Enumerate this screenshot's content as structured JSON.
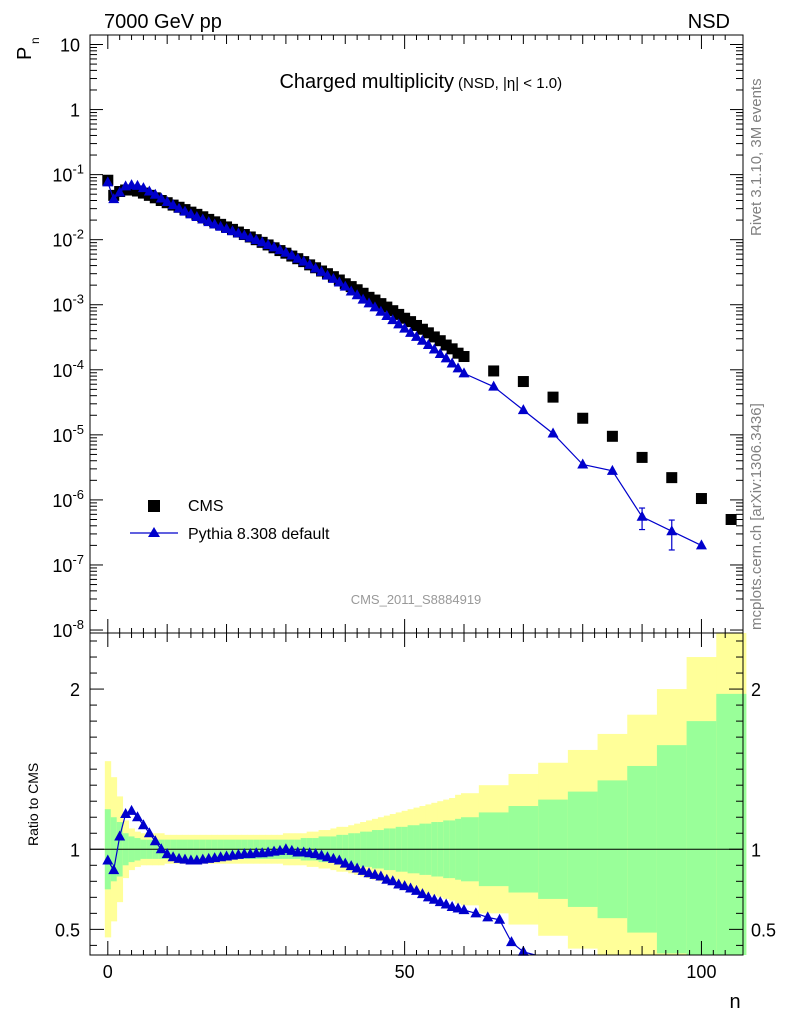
{
  "header": {
    "left": "7000 GeV pp",
    "right": "NSD"
  },
  "side_text": {
    "top": "Rivet 3.1.10,  3M events",
    "bottom": "mcplots.cern.ch [arXiv:1306.3436]"
  },
  "chart_data": [
    {
      "type": "scatter",
      "title": "Charged multiplicity",
      "subtitle": "(NSD, |η| < 1.0)",
      "watermark": "CMS_2011_S8884919",
      "ylabel": "P",
      "ylabel_sub": "n",
      "xlabel": "",
      "yscale": "log",
      "xlim": [
        -3,
        107
      ],
      "ylim": [
        9e-09,
        14
      ],
      "xticks": [
        0,
        50,
        100
      ],
      "ytick_labels": [
        "10",
        "1",
        "10^-1",
        "10^-2",
        "10^-3",
        "10^-4",
        "10^-5",
        "10^-6",
        "10^-7",
        "10^-8"
      ],
      "legend_position": "bottom-left",
      "series": [
        {
          "name": "CMS",
          "marker": "square",
          "color": "#000000",
          "x": [
            0,
            1,
            2,
            3,
            4,
            5,
            6,
            7,
            8,
            9,
            10,
            11,
            12,
            13,
            14,
            15,
            16,
            17,
            18,
            19,
            20,
            21,
            22,
            23,
            24,
            25,
            26,
            27,
            28,
            29,
            30,
            31,
            32,
            33,
            34,
            35,
            36,
            37,
            38,
            39,
            40,
            41,
            42,
            43,
            44,
            45,
            46,
            47,
            48,
            49,
            50,
            51,
            52,
            53,
            54,
            55,
            56,
            57,
            58,
            59,
            60,
            62,
            64,
            66,
            68,
            70,
            72,
            74,
            76,
            78,
            80,
            82,
            84,
            86,
            88,
            90,
            92,
            94,
            96,
            98,
            100,
            102,
            104
          ],
          "y": [
            0.08,
            0.05,
            0.055,
            0.058,
            0.058,
            0.056,
            0.052,
            0.048,
            0.044,
            0.04,
            0.037,
            0.034,
            0.0315,
            0.029,
            0.0265,
            0.0245,
            0.0225,
            0.0205,
            0.0188,
            0.0172,
            0.0157,
            0.0144,
            0.0131,
            0.012,
            0.011,
            0.01,
            0.0091,
            0.0083,
            0.0075,
            0.0068,
            0.0062,
            0.0056,
            0.0051,
            0.0046,
            0.0041,
            0.0037,
            0.0033,
            0.003,
            0.0027,
            0.0024,
            0.0021,
            0.0019,
            0.0017,
            0.0015,
            0.0013,
            0.00118,
            0.00104,
            0.00092,
            0.00081,
            0.00071,
            0.00062,
            0.00055,
            0.00048,
            0.00042,
            0.00037,
            0.00032,
            0.00028,
            0.00024,
            0.00021,
            0.00018,
            0.00016,
            0.0001,
            7e-05,
            5e-05,
            3.7e-05,
            2.4e-05,
            1.75e-05,
            1.25e-05,
            8.8e-06,
            6e-06,
            4.3e-06,
            3e-06,
            2.2e-06,
            1.5e-06,
            1.05e-06,
            7.2e-07,
            5e-07,
            3.5e-07,
            2.4e-07,
            1.7e-07,
            1.2e-07,
            9e-08,
            6.5e-08
          ],
          "bins_x": [
            0,
            1,
            2,
            3,
            4,
            5,
            6,
            7,
            8,
            9,
            10,
            11,
            12,
            13,
            14,
            15,
            16,
            17,
            18,
            19,
            20,
            21,
            22,
            23,
            24,
            25,
            26,
            27,
            28,
            29,
            30,
            31,
            32,
            33,
            34,
            35,
            36,
            37,
            38,
            39,
            40,
            41,
            42,
            43,
            44,
            45,
            46,
            47,
            48,
            49,
            50,
            51,
            52,
            53,
            54,
            55,
            56,
            57,
            58,
            59,
            60,
            65,
            70,
            75,
            80,
            85,
            90,
            95,
            100,
            105
          ],
          "bins_y": [
            0.082,
            0.048,
            0.055,
            0.058,
            0.058,
            0.056,
            0.052,
            0.048,
            0.044,
            0.04,
            0.037,
            0.034,
            0.0315,
            0.029,
            0.0265,
            0.0245,
            0.0225,
            0.0205,
            0.0188,
            0.0172,
            0.0157,
            0.0144,
            0.0131,
            0.012,
            0.011,
            0.01,
            0.0091,
            0.0083,
            0.0075,
            0.0068,
            0.0062,
            0.0056,
            0.0051,
            0.0046,
            0.0041,
            0.0037,
            0.0033,
            0.003,
            0.0027,
            0.0024,
            0.0021,
            0.0019,
            0.0017,
            0.0015,
            0.0013,
            0.00118,
            0.00104,
            0.00092,
            0.00081,
            0.00071,
            0.00062,
            0.00055,
            0.00048,
            0.00042,
            0.00037,
            0.00032,
            0.00028,
            0.00024,
            0.00021,
            0.00018,
            0.00016,
            9.6e-05,
            6.6e-05,
            3.8e-05,
            1.8e-05,
            9.5e-06,
            4.5e-06,
            2.2e-06,
            1.05e-06,
            5e-07
          ]
        },
        {
          "name": "Pythia 8.308 default",
          "marker": "triangle",
          "color": "#0000cc",
          "x": [
            0,
            1,
            2,
            3,
            4,
            5,
            6,
            7,
            8,
            9,
            10,
            11,
            12,
            13,
            14,
            15,
            16,
            17,
            18,
            19,
            20,
            21,
            22,
            23,
            24,
            25,
            26,
            27,
            28,
            29,
            30,
            31,
            32,
            33,
            34,
            35,
            36,
            37,
            38,
            39,
            40,
            41,
            42,
            43,
            44,
            45,
            46,
            47,
            48,
            49,
            50,
            51,
            52,
            53,
            54,
            55,
            56,
            57,
            58,
            59,
            60,
            65,
            70,
            75,
            80,
            85,
            90,
            95,
            100
          ],
          "y": [
            0.076,
            0.042,
            0.053,
            0.066,
            0.069,
            0.067,
            0.062,
            0.055,
            0.049,
            0.043,
            0.038,
            0.034,
            0.03,
            0.027,
            0.0245,
            0.0223,
            0.0204,
            0.0186,
            0.0171,
            0.0158,
            0.0146,
            0.0135,
            0.0125,
            0.0116,
            0.0107,
            0.0099,
            0.0091,
            0.0083,
            0.0076,
            0.0069,
            0.0063,
            0.0057,
            0.0051,
            0.0046,
            0.0041,
            0.0036,
            0.0032,
            0.0028,
            0.0025,
            0.0022,
            0.0019,
            0.0016,
            0.0014,
            0.0012,
            0.00105,
            0.00091,
            0.00078,
            0.00067,
            0.00058,
            0.0005,
            0.00043,
            0.00037,
            0.00032,
            0.00028,
            0.00024,
            0.000205,
            0.000175,
            0.00015,
            0.000125,
            0.000105,
            8.8e-05,
            5.5e-05,
            2.4e-05,
            1.05e-05,
            3.5e-06,
            2.8e-06,
            5.5e-07,
            3.3e-07,
            2e-07
          ],
          "yerr": [
            0,
            0,
            0,
            0,
            0,
            0,
            0,
            0,
            0,
            0,
            0,
            0,
            0,
            0,
            0,
            0,
            0,
            0,
            0,
            0,
            0,
            0,
            0,
            0,
            0,
            0,
            0,
            0,
            0,
            0,
            0,
            0,
            0,
            0,
            0,
            0,
            0,
            0,
            0,
            0,
            0,
            0,
            0,
            0,
            0,
            0,
            0,
            0,
            0,
            0,
            0,
            0,
            0,
            0,
            0,
            0,
            0,
            0,
            0,
            0,
            0,
            0,
            0,
            0,
            0,
            0,
            2e-07,
            1.6e-07,
            0
          ]
        }
      ]
    },
    {
      "type": "line",
      "ylabel": "Ratio to CMS",
      "xlabel": "n",
      "xlim": [
        -3,
        107
      ],
      "ylim": [
        0.34,
        2.35
      ],
      "xticks": [
        0,
        50,
        100
      ],
      "yticks": [
        0.5,
        1,
        2
      ],
      "reference_line": 1,
      "band_colors": {
        "inner": "#99ff99",
        "outer": "#ffff99"
      },
      "bands": {
        "x_edges": [
          -0.5,
          0.5,
          1.5,
          2.5,
          3.5,
          4.5,
          5.5,
          6.5,
          7.5,
          8.5,
          9.5,
          10.5,
          11.5,
          12.5,
          13.5,
          14.5,
          15.5,
          16.5,
          17.5,
          18.5,
          19.5,
          20.5,
          21.5,
          22.5,
          23.5,
          24.5,
          25.5,
          26.5,
          27.5,
          28.5,
          29.5,
          30.5,
          31.5,
          32.5,
          33.5,
          34.5,
          35.5,
          36.5,
          37.5,
          38.5,
          39.5,
          40.5,
          41.5,
          42.5,
          43.5,
          44.5,
          45.5,
          46.5,
          47.5,
          48.5,
          49.5,
          50.5,
          51.5,
          52.5,
          53.5,
          54.5,
          55.5,
          56.5,
          57.5,
          58.5,
          59.5,
          62.5,
          67.5,
          72.5,
          77.5,
          82.5,
          87.5,
          92.5,
          97.5,
          102.5,
          107.5
        ],
        "inner_half_width": [
          0.25,
          0.2,
          0.17,
          0.1,
          0.08,
          0.07,
          0.06,
          0.06,
          0.06,
          0.06,
          0.06,
          0.06,
          0.06,
          0.06,
          0.06,
          0.06,
          0.06,
          0.06,
          0.06,
          0.06,
          0.06,
          0.06,
          0.06,
          0.06,
          0.06,
          0.06,
          0.06,
          0.06,
          0.06,
          0.06,
          0.06,
          0.06,
          0.06,
          0.07,
          0.07,
          0.07,
          0.08,
          0.08,
          0.08,
          0.09,
          0.09,
          0.1,
          0.1,
          0.11,
          0.11,
          0.12,
          0.12,
          0.13,
          0.13,
          0.14,
          0.14,
          0.15,
          0.15,
          0.16,
          0.16,
          0.17,
          0.17,
          0.18,
          0.18,
          0.19,
          0.2,
          0.23,
          0.27,
          0.31,
          0.36,
          0.43,
          0.52,
          0.65,
          0.8,
          0.97
        ],
        "outer_half_width": [
          0.55,
          0.45,
          0.33,
          0.18,
          0.13,
          0.11,
          0.1,
          0.1,
          0.1,
          0.1,
          0.09,
          0.09,
          0.09,
          0.09,
          0.09,
          0.09,
          0.09,
          0.09,
          0.09,
          0.09,
          0.09,
          0.09,
          0.09,
          0.09,
          0.09,
          0.09,
          0.09,
          0.09,
          0.09,
          0.09,
          0.1,
          0.1,
          0.1,
          0.1,
          0.11,
          0.11,
          0.12,
          0.12,
          0.13,
          0.14,
          0.14,
          0.15,
          0.16,
          0.17,
          0.18,
          0.19,
          0.2,
          0.21,
          0.22,
          0.23,
          0.24,
          0.25,
          0.26,
          0.27,
          0.28,
          0.29,
          0.3,
          0.31,
          0.32,
          0.34,
          0.35,
          0.4,
          0.47,
          0.54,
          0.62,
          0.72,
          0.84,
          1.0,
          1.2,
          1.5
        ]
      },
      "series": [
        {
          "name": "Pythia 8.308 default",
          "color": "#0000cc",
          "x": [
            0,
            1,
            2,
            3,
            4,
            5,
            6,
            7,
            8,
            9,
            10,
            11,
            12,
            13,
            14,
            15,
            16,
            17,
            18,
            19,
            20,
            21,
            22,
            23,
            24,
            25,
            26,
            27,
            28,
            29,
            30,
            31,
            32,
            33,
            34,
            35,
            36,
            37,
            38,
            39,
            40,
            41,
            42,
            43,
            44,
            45,
            46,
            47,
            48,
            49,
            50,
            51,
            52,
            53,
            54,
            55,
            56,
            57,
            58,
            59,
            60,
            62,
            64,
            66,
            68,
            70
          ],
          "y": [
            0.93,
            0.87,
            1.08,
            1.22,
            1.24,
            1.2,
            1.15,
            1.1,
            1.05,
            1.0,
            0.97,
            0.95,
            0.94,
            0.935,
            0.93,
            0.93,
            0.935,
            0.94,
            0.945,
            0.95,
            0.955,
            0.96,
            0.965,
            0.97,
            0.97,
            0.975,
            0.975,
            0.98,
            0.985,
            0.99,
            1.0,
            0.99,
            0.98,
            0.98,
            0.975,
            0.97,
            0.96,
            0.95,
            0.94,
            0.93,
            0.91,
            0.895,
            0.88,
            0.865,
            0.85,
            0.84,
            0.83,
            0.81,
            0.8,
            0.78,
            0.77,
            0.755,
            0.74,
            0.72,
            0.7,
            0.685,
            0.67,
            0.655,
            0.64,
            0.63,
            0.62,
            0.6,
            0.575,
            0.56,
            0.42,
            0.36
          ],
          "yerr": [
            0,
            0,
            0,
            0,
            0,
            0,
            0,
            0,
            0,
            0,
            0,
            0,
            0,
            0,
            0,
            0,
            0,
            0,
            0,
            0,
            0,
            0,
            0,
            0,
            0,
            0,
            0,
            0,
            0,
            0,
            0,
            0,
            0,
            0,
            0,
            0,
            0,
            0,
            0,
            0,
            0,
            0,
            0,
            0,
            0,
            0,
            0,
            0,
            0,
            0,
            0,
            0,
            0,
            0,
            0,
            0,
            0,
            0,
            0,
            0,
            0,
            0.015,
            0.015,
            0.015,
            0.02,
            0.02
          ]
        }
      ]
    }
  ]
}
